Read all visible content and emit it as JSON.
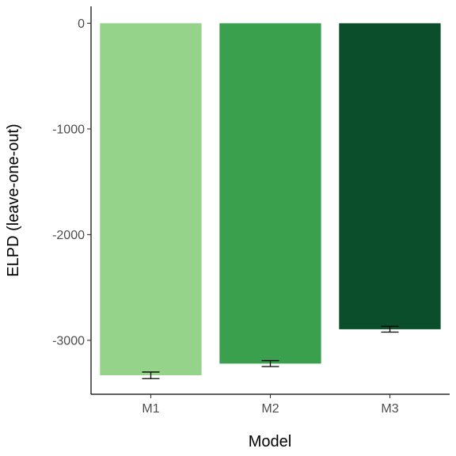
{
  "chart_data": {
    "type": "bar",
    "title": "",
    "xlabel": "Model",
    "ylabel": "ELPD (leave-one-out)",
    "categories": [
      "M1",
      "M2",
      "M3"
    ],
    "values": [
      -3330,
      -3220,
      -2895
    ],
    "error_low": [
      -3362,
      -3248,
      -2922
    ],
    "error_high": [
      -3300,
      -3192,
      -2868
    ],
    "colors": [
      "#96d38a",
      "#3aa04e",
      "#0b4e2b"
    ],
    "ylim": [
      -3510,
      160
    ],
    "yticks": [
      0,
      -1000,
      -2000,
      -3000
    ],
    "ytick_labels": [
      "0",
      "-1000",
      "-2000",
      "-3000"
    ],
    "grid": false,
    "legend": "none"
  }
}
